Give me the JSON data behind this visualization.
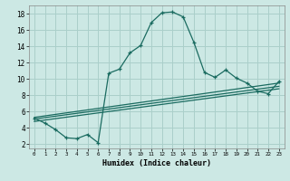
{
  "xlabel": "Humidex (Indice chaleur)",
  "bg_color": "#cce8e4",
  "grid_color": "#aacfca",
  "line_color": "#1a6b60",
  "xlim": [
    -0.5,
    23.5
  ],
  "ylim": [
    1.5,
    19
  ],
  "xticks": [
    0,
    1,
    2,
    3,
    4,
    5,
    6,
    7,
    8,
    9,
    10,
    11,
    12,
    13,
    14,
    15,
    16,
    17,
    18,
    19,
    20,
    21,
    22,
    23
  ],
  "yticks": [
    2,
    4,
    6,
    8,
    10,
    12,
    14,
    16,
    18
  ],
  "line1_x": [
    0,
    1,
    2,
    3,
    4,
    5,
    6,
    7,
    8,
    9,
    10,
    11,
    12,
    13,
    14,
    15,
    16,
    17,
    18,
    19,
    20,
    21,
    22,
    23
  ],
  "line1_y": [
    5.2,
    4.6,
    3.8,
    2.8,
    2.7,
    3.2,
    2.2,
    10.7,
    11.2,
    13.2,
    14.1,
    16.9,
    18.1,
    18.2,
    17.6,
    14.5,
    10.8,
    10.2,
    11.1,
    10.1,
    9.5,
    8.5,
    8.2,
    9.7
  ],
  "line2_x": [
    0,
    23
  ],
  "line2_y": [
    4.8,
    8.8
  ],
  "line3_x": [
    0,
    23
  ],
  "line3_y": [
    5.1,
    9.1
  ],
  "line4_x": [
    0,
    23
  ],
  "line4_y": [
    5.3,
    9.5
  ]
}
